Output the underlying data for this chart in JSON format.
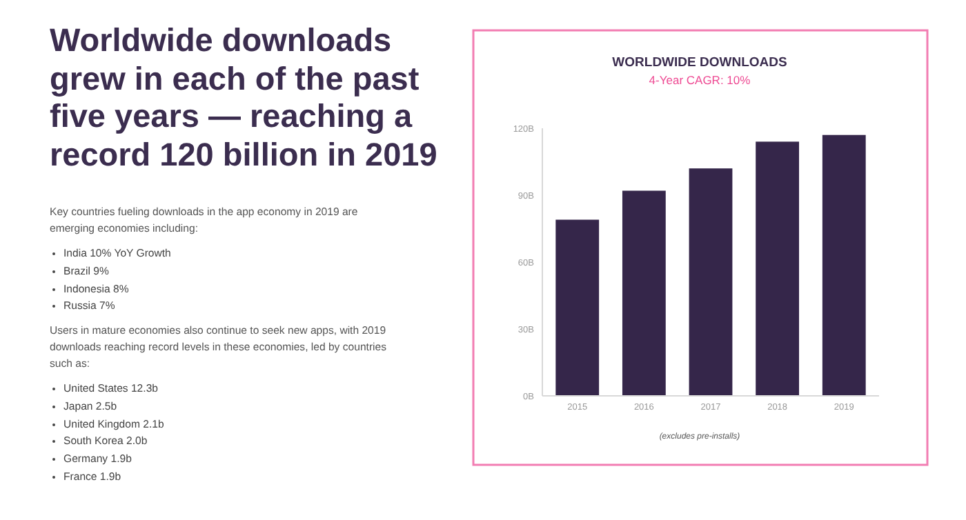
{
  "chart_data": [
    {
      "type": "other",
      "title": "Worldwide downloads grew in each of the past five years — reaching a record 120 billion in 2019",
      "subtitle": "Key countries fueling downloads in the app economy in 2019 are emerging economies including:",
      "annotations": [
        "India 10% YoY Growth",
        "Brazil 9%",
        "Indonesia 8%",
        "Russia 7%"
      ]
    },
    {
      "type": "other",
      "subtitle": "Users in mature economies also continue to seek new apps, with 2019 downloads reaching record levels in these economies, led by countries such as:",
      "annotations": [
        "United States 12.3b",
        "Japan 2.5b",
        "United Kingdom 2.1b",
        "South Korea 2.0b",
        "Germany 1.9b",
        "France 1.9b"
      ]
    },
    {
      "type": "bar",
      "title": "WORLDWIDE DOWNLOADS",
      "subtitle": "4-Year CAGR: 10%",
      "categories": [
        "2015",
        "2016",
        "2017",
        "2018",
        "2019"
      ],
      "values": [
        79,
        92,
        102,
        114,
        117
      ],
      "color": "#35264a",
      "ylim": [
        0,
        120
      ],
      "yticks": [
        {
          "value": 0,
          "label": "0B"
        },
        {
          "value": 30,
          "label": "30B"
        },
        {
          "value": 60,
          "label": "60B"
        },
        {
          "value": 90,
          "label": "90B"
        },
        {
          "value": 120,
          "label": "120B"
        }
      ],
      "annotations": [
        "(excludes pre-installs)"
      ]
    }
  ]
}
